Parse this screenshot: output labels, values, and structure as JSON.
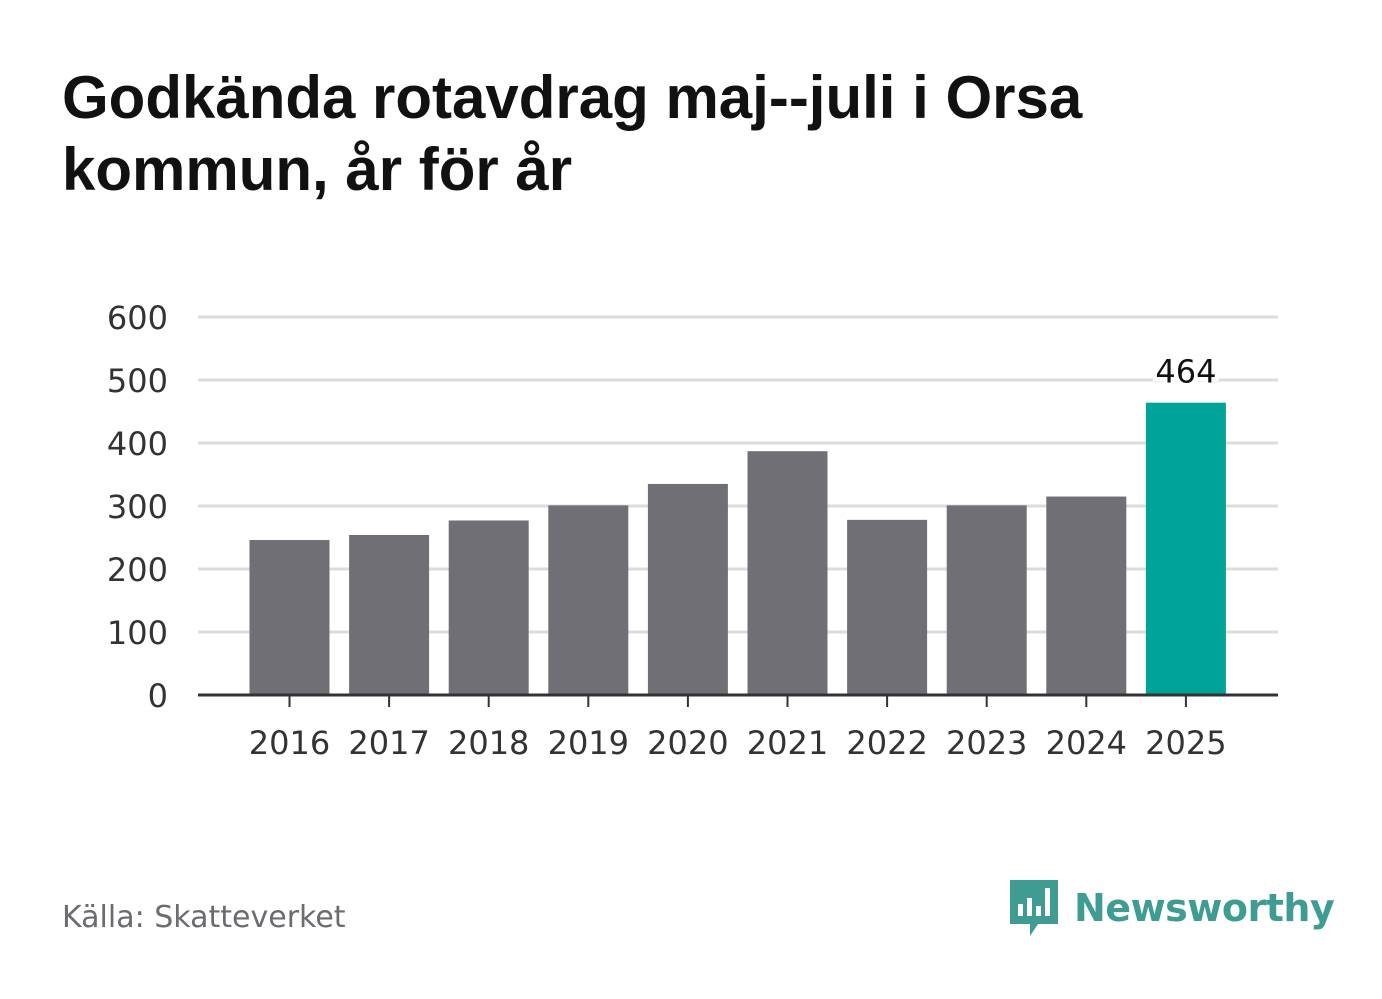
{
  "title": "Godkända rotavdrag maj--juli i Orsa kommun, år för år",
  "source": "Källa: Skatteverket",
  "brand": {
    "name": "Newsworthy",
    "icon": "newsworthy-logo-icon"
  },
  "colors": {
    "bar": "#706f75",
    "highlight": "#00a398",
    "grid": "#dcdcdc",
    "axis": "#333333",
    "brand": "#3f9c93"
  },
  "chart_data": {
    "type": "bar",
    "title": "Godkända rotavdrag maj--juli i Orsa kommun, år för år",
    "xlabel": "",
    "ylabel": "",
    "categories": [
      "2016",
      "2017",
      "2018",
      "2019",
      "2020",
      "2021",
      "2022",
      "2023",
      "2024",
      "2025"
    ],
    "values": [
      246,
      254,
      277,
      301,
      335,
      387,
      278,
      301,
      315,
      464
    ],
    "highlight_index": 9,
    "data_labels": [
      {
        "index": 9,
        "text": "464"
      }
    ],
    "ylim": [
      0,
      600
    ],
    "yticks": [
      0,
      100,
      200,
      300,
      400,
      500,
      600
    ],
    "grid": true,
    "legend": "none"
  }
}
